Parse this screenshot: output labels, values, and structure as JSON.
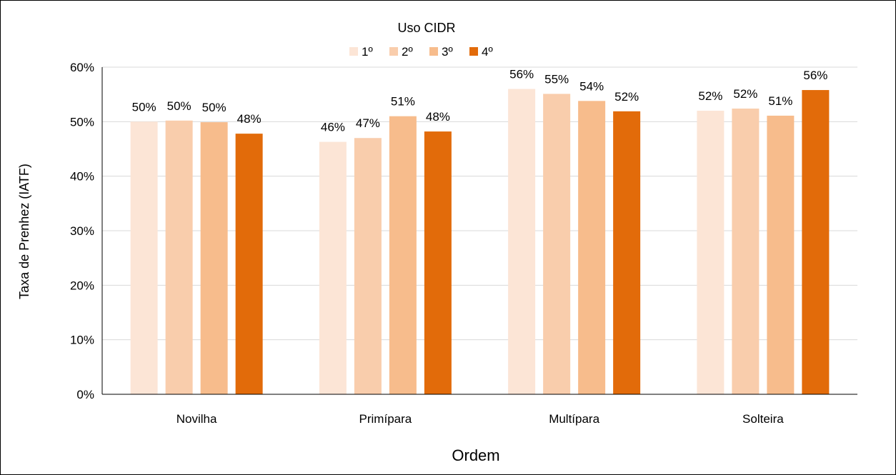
{
  "chart_data": {
    "type": "bar",
    "title": "",
    "legend_title": "Uso CIDR",
    "legend_placement": "top-center",
    "xlabel": "Ordem",
    "ylabel": "Taxa de Prenhez (IATF)",
    "ylim": [
      0,
      0.6
    ],
    "yticks": [
      "0%",
      "10%",
      "20%",
      "30%",
      "40%",
      "50%",
      "60%"
    ],
    "grid": true,
    "categories": [
      "Novilha",
      "Primípara",
      "Multípara",
      "Solteira"
    ],
    "series": [
      {
        "name": "1º",
        "color": "#FCE5D6",
        "values": [
          0.5,
          0.463,
          0.56,
          0.52
        ],
        "labels": [
          "50%",
          "46%",
          "56%",
          "52%"
        ]
      },
      {
        "name": "2º",
        "color": "#F9CDAC",
        "values": [
          0.502,
          0.47,
          0.551,
          0.524
        ],
        "labels": [
          "50%",
          "47%",
          "55%",
          "52%"
        ]
      },
      {
        "name": "3º",
        "color": "#F7BC8C",
        "values": [
          0.499,
          0.51,
          0.538,
          0.511
        ],
        "labels": [
          "50%",
          "51%",
          "54%",
          "51%"
        ]
      },
      {
        "name": "4º",
        "color": "#E26B0A",
        "values": [
          0.478,
          0.482,
          0.519,
          0.558
        ],
        "labels": [
          "48%",
          "48%",
          "52%",
          "56%"
        ]
      }
    ]
  }
}
